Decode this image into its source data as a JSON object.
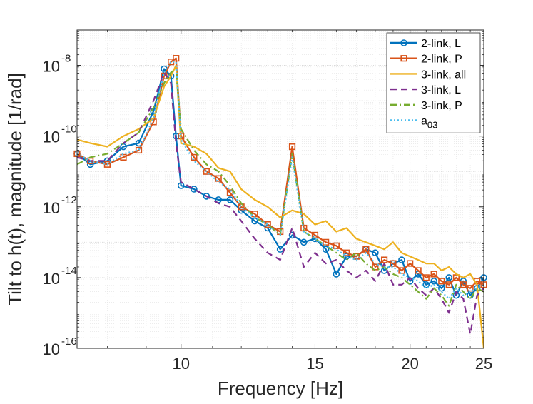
{
  "chart_data": {
    "type": "line",
    "title": "",
    "xlabel": "Frequency [Hz]",
    "ylabel": "Tilt to h(t), magnitude [1/rad]",
    "xscale": "log",
    "yscale": "log",
    "xlim": [
      7.3,
      25
    ],
    "ylim_exp": [
      -16,
      -7
    ],
    "x_ticks": [
      10,
      15,
      20,
      25
    ],
    "x_tick_labels": [
      "10",
      "15",
      "20",
      "25"
    ],
    "y_ticks_exp": [
      -16,
      -14,
      -12,
      -10,
      -8
    ],
    "y_tick_base": "10",
    "y_tick_exponents": [
      "-16",
      "-14",
      "-12",
      "-10",
      "-8"
    ],
    "grid": true,
    "minor_grid": true,
    "legend": {
      "placement": "top-right"
    },
    "x": [
      7.3,
      7.6,
      8.0,
      8.4,
      8.8,
      9.2,
      9.5,
      9.7,
      9.85,
      10.0,
      10.4,
      10.8,
      11.2,
      11.6,
      12.0,
      12.5,
      13.0,
      13.5,
      14.0,
      14.5,
      15.0,
      15.5,
      16.0,
      16.5,
      17.0,
      17.5,
      18.0,
      18.5,
      19.0,
      19.5,
      20.0,
      20.5,
      21.0,
      21.5,
      22.0,
      22.5,
      23.0,
      23.5,
      24.0,
      24.5,
      25.0
    ],
    "series": [
      {
        "name": "2-link, L",
        "color": "#0072BD",
        "dash": "solid",
        "marker": "circle",
        "values": [
          -10.5,
          -10.8,
          -10.7,
          -10.3,
          -10.2,
          -9.3,
          -8.1,
          -8.3,
          -10.0,
          -11.4,
          -11.5,
          -11.7,
          -11.8,
          -11.8,
          -12.1,
          -12.4,
          -12.6,
          -13.2,
          -12.8,
          -13.0,
          -12.9,
          -13.2,
          -13.9,
          -13.4,
          -13.4,
          -13.2,
          -13.3,
          -13.8,
          -13.6,
          -13.5,
          -14.1,
          -13.9,
          -14.2,
          -14.1,
          -14.3,
          -14.0,
          -14.5,
          -14.1,
          -14.5,
          -14.3,
          -14.0
        ]
      },
      {
        "name": "2-link, P",
        "color": "#D95319",
        "dash": "solid",
        "marker": "square",
        "values": [
          -10.5,
          -10.7,
          -10.8,
          -10.6,
          -10.4,
          -9.6,
          -8.3,
          -7.9,
          -7.8,
          -10.0,
          -10.6,
          -11.0,
          -11.2,
          -11.6,
          -12.0,
          -12.2,
          -12.5,
          -12.7,
          -10.3,
          -12.6,
          -12.8,
          -13.0,
          -13.1,
          -13.3,
          -13.4,
          -13.2,
          -13.7,
          -13.5,
          -13.6,
          -13.8,
          -13.6,
          -13.8,
          -14.0,
          -13.9,
          -14.1,
          -14.2,
          -14.0,
          -14.2,
          -14.3,
          -14.1,
          -14.2
        ]
      },
      {
        "name": "3-link, all",
        "color": "#EDB120",
        "dash": "solid",
        "marker": "none",
        "values": [
          -10.1,
          -10.2,
          -10.3,
          -10.0,
          -9.8,
          -9.5,
          -8.6,
          -8.3,
          -8.0,
          -10.2,
          -10.3,
          -10.5,
          -10.9,
          -11.0,
          -11.5,
          -11.8,
          -12.0,
          -12.3,
          -12.1,
          -12.2,
          -12.5,
          -12.4,
          -12.7,
          -12.6,
          -12.9,
          -13.0,
          -13.1,
          -13.2,
          -13.0,
          -13.3,
          -13.4,
          -13.5,
          -13.6,
          -13.6,
          -13.8,
          -13.7,
          -13.9,
          -14.0,
          -13.9,
          -14.2,
          -16.0
        ]
      },
      {
        "name": "3-link, L",
        "color": "#7E2F8E",
        "dash": "dashed",
        "marker": "none",
        "values": [
          -10.6,
          -10.7,
          -10.7,
          -10.2,
          -9.9,
          -9.0,
          -8.2,
          -8.5,
          -10.2,
          -11.3,
          -11.5,
          -11.7,
          -11.9,
          -12.0,
          -12.4,
          -12.9,
          -13.3,
          -13.5,
          -12.6,
          -13.7,
          -13.3,
          -13.6,
          -13.5,
          -13.8,
          -14.0,
          -13.8,
          -14.1,
          -13.6,
          -14.2,
          -14.2,
          -14.0,
          -14.3,
          -14.5,
          -14.3,
          -14.6,
          -15.0,
          -14.4,
          -14.6,
          -15.6,
          -14.5,
          -14.3
        ]
      },
      {
        "name": "3-link, P",
        "color": "#77AC30",
        "dash": "dashdot",
        "marker": "none",
        "values": [
          -10.8,
          -10.6,
          -10.5,
          -10.2,
          -9.9,
          -9.2,
          -8.5,
          -8.2,
          -8.1,
          -9.8,
          -10.4,
          -10.8,
          -11.0,
          -11.4,
          -11.9,
          -12.3,
          -12.5,
          -12.8,
          -10.5,
          -12.7,
          -12.9,
          -13.1,
          -13.3,
          -13.5,
          -13.3,
          -13.6,
          -13.8,
          -13.7,
          -13.9,
          -14.0,
          -14.2,
          -14.4,
          -14.6,
          -14.3,
          -14.5,
          -14.8,
          -14.2,
          -14.4,
          -14.6,
          -14.3,
          -14.4
        ]
      },
      {
        "name": "a",
        "name_sub": "03",
        "color": "#4DBEEE",
        "dash": "dotted",
        "marker": "none",
        "values": [
          -10.5,
          -10.7,
          -10.8,
          -10.5,
          -10.4,
          -9.5,
          -8.2,
          -7.9,
          -7.9,
          -10.1,
          -10.7,
          -11.0,
          -11.3,
          -11.5,
          -12.0,
          -12.3,
          -12.5,
          -12.8,
          -10.6,
          -12.7,
          -12.9,
          -13.1,
          -13.2,
          -13.4,
          -13.5,
          -13.3,
          -13.6,
          -13.7,
          -13.7,
          -13.9,
          -14.0,
          -14.1,
          -14.3,
          -14.2,
          -14.4,
          -14.6,
          -14.3,
          -14.5,
          -14.4,
          -14.3,
          -14.2
        ]
      }
    ]
  }
}
